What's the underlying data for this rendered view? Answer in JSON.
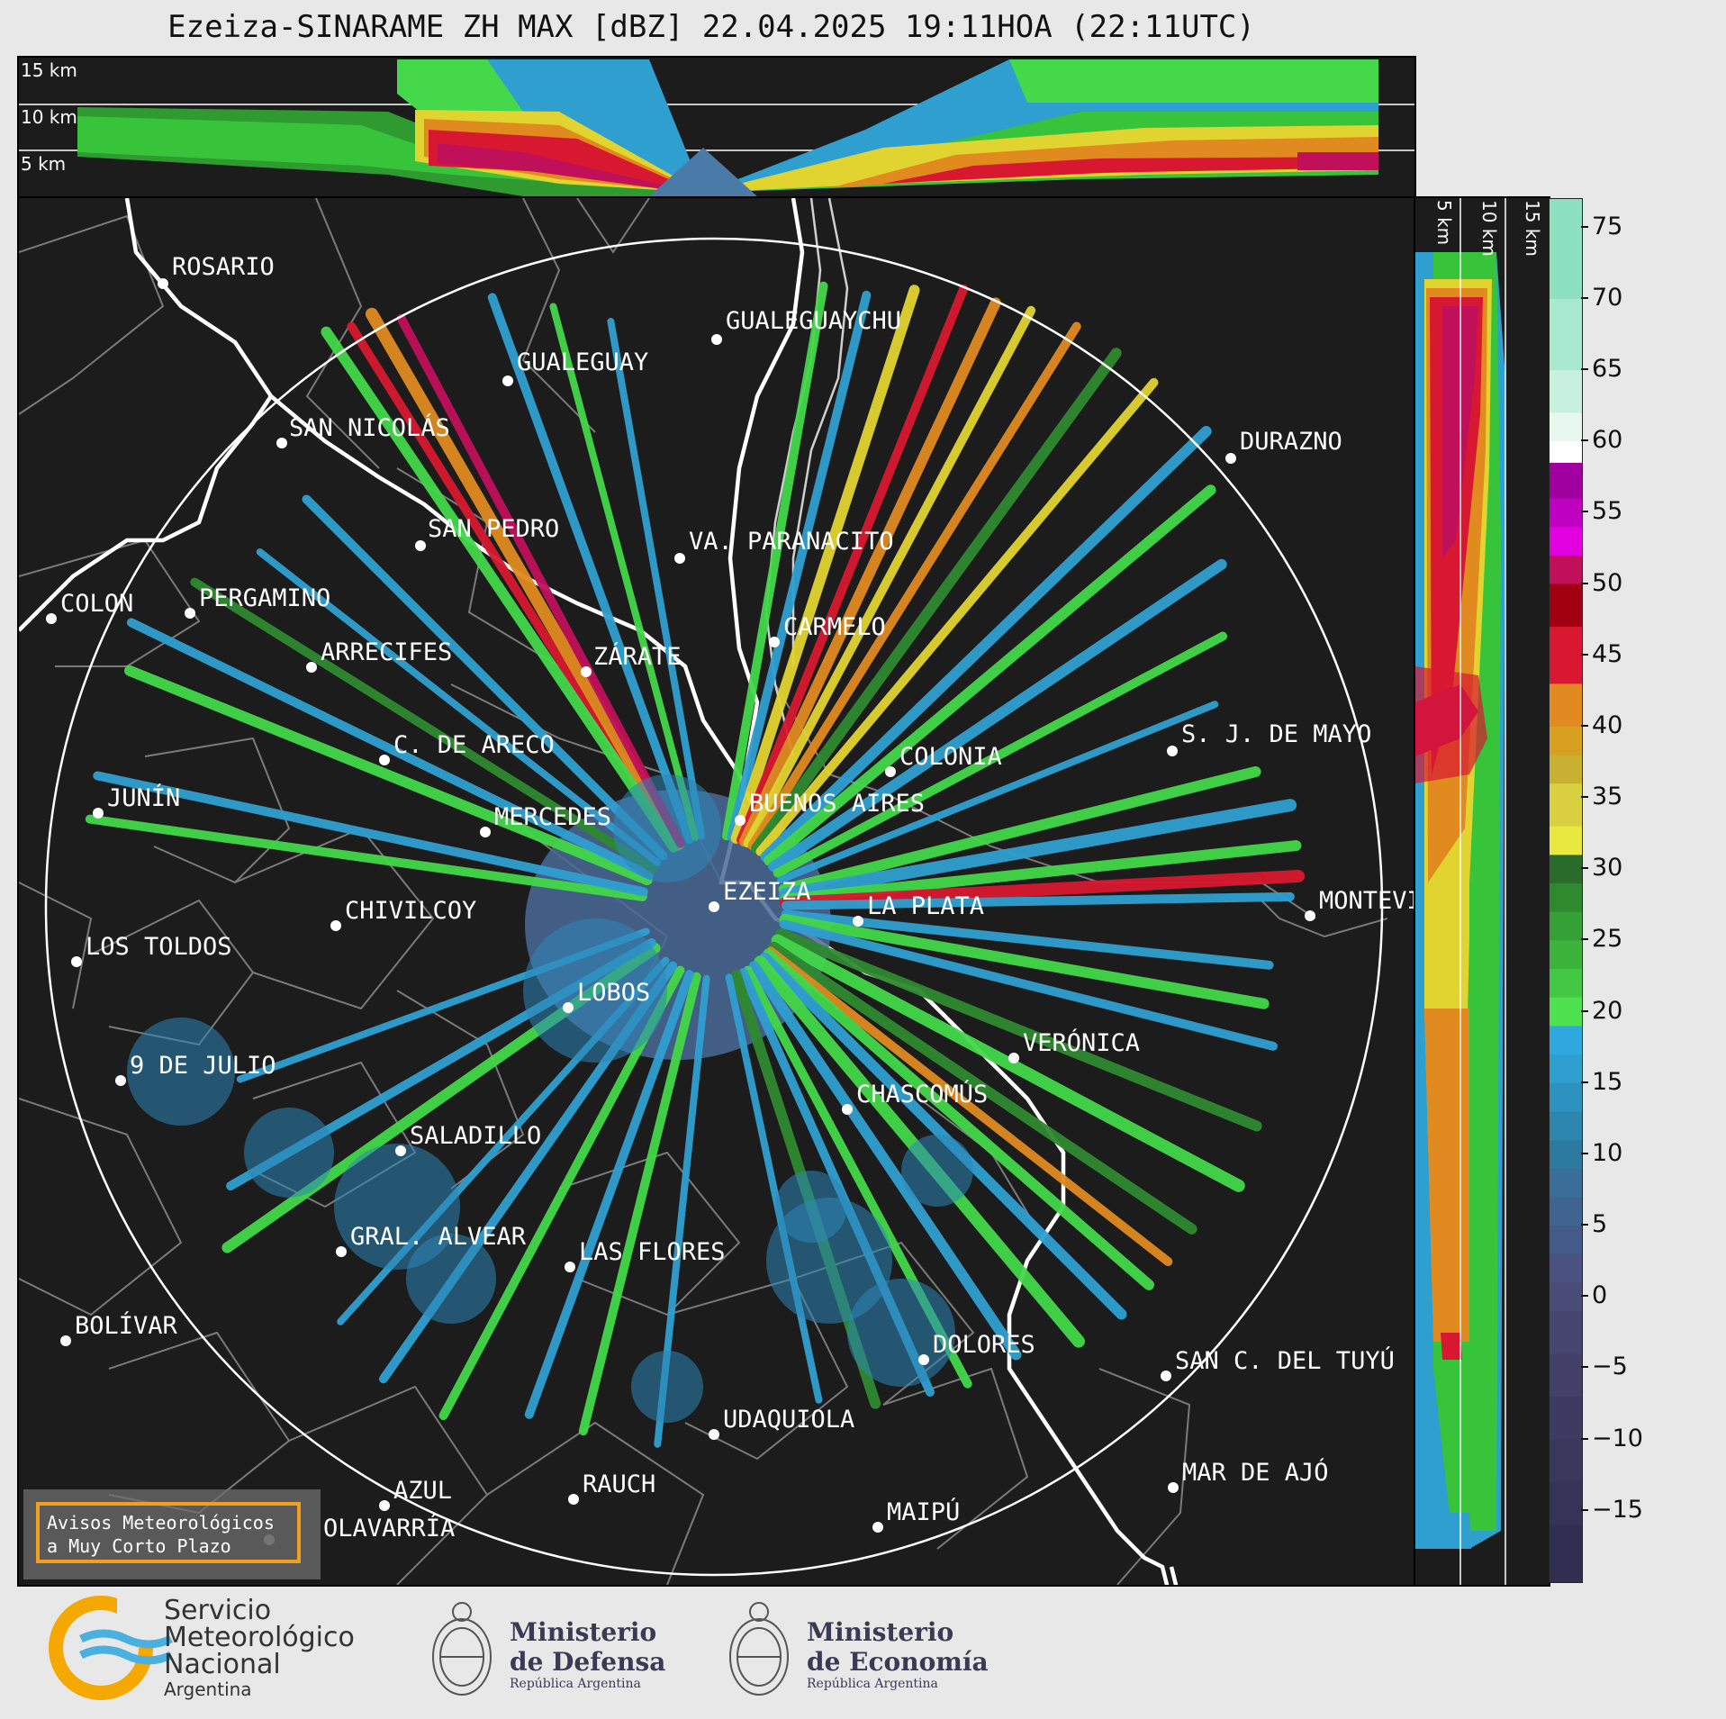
{
  "title": "Ezeiza-SINARAME ZH MAX [dBZ] 22.04.2025 19:11HOA (22:11UTC)",
  "top_panel": {
    "height_labels": [
      "15 km",
      "10 km",
      "5 km"
    ]
  },
  "side_panel": {
    "height_labels": [
      "5 km",
      "10 km",
      "15 km"
    ]
  },
  "colorbar": {
    "ticks": [
      "75",
      "70",
      "65",
      "60",
      "55",
      "50",
      "45",
      "40",
      "35",
      "30",
      "25",
      "20",
      "15",
      "10",
      "5",
      "0",
      "−5",
      "−10",
      "−15"
    ],
    "range": [
      -20,
      77
    ]
  },
  "cities": [
    {
      "name": "ROSARIO"
    },
    {
      "name": "GUALEGUAYCHU"
    },
    {
      "name": "GUALEGUAY"
    },
    {
      "name": "SAN NICOLÁS"
    },
    {
      "name": "DURAZNO"
    },
    {
      "name": "SAN PEDRO"
    },
    {
      "name": "VA. PARANACITO"
    },
    {
      "name": "COLON"
    },
    {
      "name": "PERGAMINO"
    },
    {
      "name": "CARMELO"
    },
    {
      "name": "ARRECIFES"
    },
    {
      "name": "ZÁRATE"
    },
    {
      "name": "S. J. DE MAYO"
    },
    {
      "name": "C. DE ARECO"
    },
    {
      "name": "COLONIA"
    },
    {
      "name": "JUNÍN"
    },
    {
      "name": "MERCEDES"
    },
    {
      "name": "BUENOS AIRES"
    },
    {
      "name": "EZEIZA"
    },
    {
      "name": "MONTEVIDEO"
    },
    {
      "name": "CHIVILCOY"
    },
    {
      "name": "LA PLATA"
    },
    {
      "name": "LOS TOLDOS"
    },
    {
      "name": "LOBOS"
    },
    {
      "name": "VERÓNICA"
    },
    {
      "name": "9 DE JULIO"
    },
    {
      "name": "CHASCOMÚS"
    },
    {
      "name": "SALADILLO"
    },
    {
      "name": "GRAL. ALVEAR"
    },
    {
      "name": "LAS FLORES"
    },
    {
      "name": "BOLÍVAR"
    },
    {
      "name": "DOLORES"
    },
    {
      "name": "SAN C. DEL TUYÚ"
    },
    {
      "name": "UDAQUIOLA"
    },
    {
      "name": "AZUL"
    },
    {
      "name": "RAUCH"
    },
    {
      "name": "MAR DE AJÓ"
    },
    {
      "name": "OLAVARRÍA"
    },
    {
      "name": "MAIPÚ"
    }
  ],
  "warning_box": {
    "line1": "Avisos Meteorológicos",
    "line2": "a Muy Corto Plazo"
  },
  "footer": {
    "smn_line1": "Servicio",
    "smn_line2": "Meteorológico",
    "smn_line3": "Nacional",
    "smn_line4": "Argentina",
    "defensa_line1": "Ministerio",
    "defensa_line2": "de Defensa",
    "defensa_line3": "República Argentina",
    "economia_line1": "Ministerio",
    "economia_line2": "de Economía",
    "economia_line3": "República Argentina"
  }
}
